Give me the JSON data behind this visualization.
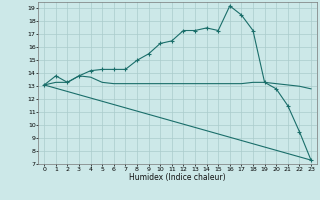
{
  "title": "",
  "xlabel": "Humidex (Indice chaleur)",
  "background_color": "#cce8e8",
  "line_color": "#1a6e6a",
  "grid_color": "#aacccc",
  "xlim": [
    -0.5,
    23.5
  ],
  "ylim": [
    7,
    19.5
  ],
  "xticks": [
    0,
    1,
    2,
    3,
    4,
    5,
    6,
    7,
    8,
    9,
    10,
    11,
    12,
    13,
    14,
    15,
    16,
    17,
    18,
    19,
    20,
    21,
    22,
    23
  ],
  "yticks": [
    7,
    8,
    9,
    10,
    11,
    12,
    13,
    14,
    15,
    16,
    17,
    18,
    19
  ],
  "line1_x": [
    0,
    1,
    2,
    3,
    4,
    5,
    6,
    7,
    8,
    9,
    10,
    11,
    12,
    13,
    14,
    15,
    16,
    17,
    18,
    19,
    20,
    21,
    22,
    23
  ],
  "line1_y": [
    13.1,
    13.8,
    13.3,
    13.8,
    14.2,
    14.3,
    14.3,
    14.3,
    15.0,
    15.5,
    16.3,
    16.5,
    17.3,
    17.3,
    17.5,
    17.3,
    19.2,
    18.5,
    17.3,
    13.3,
    12.8,
    11.5,
    9.5,
    7.3
  ],
  "line2_x": [
    0,
    1,
    2,
    3,
    4,
    5,
    6,
    7,
    8,
    9,
    10,
    11,
    12,
    13,
    14,
    15,
    16,
    17,
    18,
    19,
    20,
    21,
    22,
    23
  ],
  "line2_y": [
    13.1,
    13.3,
    13.3,
    13.8,
    13.7,
    13.3,
    13.2,
    13.2,
    13.2,
    13.2,
    13.2,
    13.2,
    13.2,
    13.2,
    13.2,
    13.2,
    13.2,
    13.2,
    13.3,
    13.3,
    13.2,
    13.1,
    13.0,
    12.8
  ],
  "line3_x": [
    0,
    23
  ],
  "line3_y": [
    13.1,
    7.3
  ]
}
